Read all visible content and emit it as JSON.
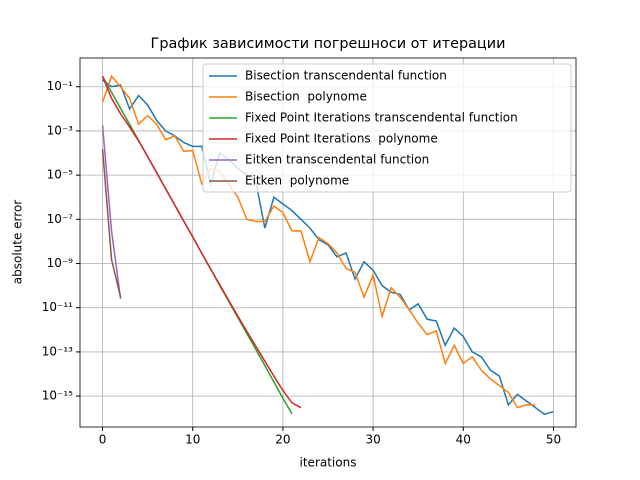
{
  "chart_data": {
    "type": "line",
    "title": "График зависимости погрешноси от итерации",
    "x_label": "iterations",
    "y_label": "absolute error",
    "log_y": true,
    "grid": true,
    "legend_position": "upper-right",
    "xlim": [
      -2.5,
      52.5
    ],
    "ylim": [
      4e-17,
      2
    ],
    "xticks": [
      0,
      10,
      20,
      30,
      40,
      50
    ],
    "yticks": [
      {
        "value": 0.1,
        "label": "10⁻¹"
      },
      {
        "value": 0.001,
        "label": "10⁻³"
      },
      {
        "value": 1e-05,
        "label": "10⁻⁵"
      },
      {
        "value": 1e-07,
        "label": "10⁻⁷"
      },
      {
        "value": 1e-09,
        "label": "10⁻⁹"
      },
      {
        "value": 1e-11,
        "label": "10⁻¹¹"
      },
      {
        "value": 1e-13,
        "label": "10⁻¹³"
      },
      {
        "value": 1e-15,
        "label": "10⁻¹⁵"
      }
    ],
    "series": [
      {
        "name": "Bisection transcendental function",
        "color": "#1f77b4",
        "x": [
          0,
          1,
          2,
          3,
          4,
          5,
          6,
          7,
          8,
          9,
          10,
          11,
          12,
          13,
          14,
          15,
          16,
          17,
          18,
          19,
          20,
          21,
          22,
          23,
          24,
          25,
          26,
          27,
          28,
          29,
          30,
          31,
          32,
          33,
          34,
          35,
          36,
          37,
          38,
          39,
          40,
          41,
          42,
          43,
          44,
          45,
          46,
          47,
          48,
          49,
          50
        ],
        "values": [
          0.2,
          0.1,
          0.12,
          0.01,
          0.04,
          0.015,
          0.003,
          0.001,
          0.0006,
          0.0003,
          0.0002,
          0.0002,
          4e-06,
          0.0001,
          5e-05,
          2e-05,
          1e-05,
          5e-06,
          4e-08,
          1e-06,
          5e-07,
          2.5e-07,
          1e-07,
          4e-08,
          1.2e-08,
          7e-09,
          2e-09,
          3e-09,
          2e-10,
          1.2e-09,
          5e-10,
          1e-10,
          5e-11,
          4e-11,
          8e-12,
          1.5e-11,
          3e-12,
          2.5e-12,
          2e-13,
          1.2e-12,
          5e-13,
          1e-13,
          6e-14,
          1.5e-14,
          8e-15,
          4e-16,
          1.2e-15,
          6e-16,
          3e-16,
          1.5e-16,
          2e-16
        ]
      },
      {
        "name": "Bisection  polynome",
        "color": "#ff7f0e",
        "x": [
          0,
          1,
          2,
          3,
          4,
          5,
          6,
          7,
          8,
          9,
          10,
          11,
          12,
          13,
          14,
          15,
          16,
          17,
          18,
          19,
          20,
          21,
          22,
          23,
          24,
          25,
          26,
          27,
          28,
          29,
          30,
          31,
          32,
          33,
          34,
          35,
          36,
          37,
          38,
          39,
          40,
          41,
          42,
          43,
          44,
          45,
          46,
          47,
          48
        ],
        "values": [
          0.02,
          0.3,
          0.1,
          0.03,
          0.002,
          0.005,
          0.002,
          0.0004,
          0.0006,
          0.00012,
          0.00013,
          4e-06,
          2e-05,
          1.5e-05,
          4e-06,
          1e-06,
          1e-07,
          8e-08,
          8e-08,
          4e-07,
          2e-07,
          3e-08,
          3e-08,
          1.2e-09,
          1.5e-08,
          8e-09,
          3e-09,
          6e-10,
          4e-10,
          3e-11,
          3e-10,
          4e-12,
          8e-11,
          3e-11,
          8e-12,
          2e-12,
          6e-13,
          9e-13,
          3e-14,
          2e-13,
          3e-14,
          6e-14,
          1.5e-14,
          6e-15,
          3e-15,
          1.5e-15,
          3e-16,
          4e-16,
          4e-16
        ]
      },
      {
        "name": "Fixed Point Iterations transcendental function",
        "color": "#2ca02c",
        "x": [
          0,
          1,
          2,
          3,
          4,
          5,
          6,
          7,
          8,
          9,
          10,
          11,
          12,
          13,
          14,
          15,
          16,
          17,
          18,
          19,
          20,
          21
        ],
        "values": [
          0.3,
          0.056,
          0.0105,
          0.002,
          0.00037,
          6.9e-05,
          1.3e-05,
          2.4e-06,
          4.5e-07,
          8.4e-08,
          1.6e-08,
          2.9e-09,
          5.5e-10,
          1e-10,
          1.9e-11,
          3.6e-12,
          6.8e-13,
          1.3e-13,
          2.4e-14,
          4.4e-15,
          8e-16,
          1.6e-16
        ]
      },
      {
        "name": "Fixed Point Iterations  polynome",
        "color": "#d62728",
        "x": [
          0,
          1,
          2,
          3,
          4,
          5,
          6,
          7,
          8,
          9,
          10,
          11,
          12,
          13,
          14,
          15,
          16,
          17,
          18,
          19,
          20,
          21,
          22
        ],
        "values": [
          0.3,
          0.03,
          0.006,
          0.0015,
          0.00035,
          7e-05,
          1.3e-05,
          2.4e-06,
          4.5e-07,
          8.4e-08,
          1.6e-08,
          2.9e-09,
          5.5e-10,
          1.1e-10,
          2.1e-11,
          4.2e-12,
          8.5e-13,
          1.8e-13,
          3.8e-14,
          8e-15,
          1.8e-15,
          5e-16,
          3e-16
        ]
      },
      {
        "name": "Eitken transcendental function",
        "color": "#9467bd",
        "x": [
          0,
          1,
          2
        ],
        "values": [
          0.0018,
          3e-08,
          2.5e-11
        ]
      },
      {
        "name": "Eitken  polynome",
        "color": "#8c564b",
        "x": [
          0,
          1,
          2
        ],
        "values": [
          0.00015,
          1.5e-09,
          3e-11
        ]
      }
    ]
  }
}
